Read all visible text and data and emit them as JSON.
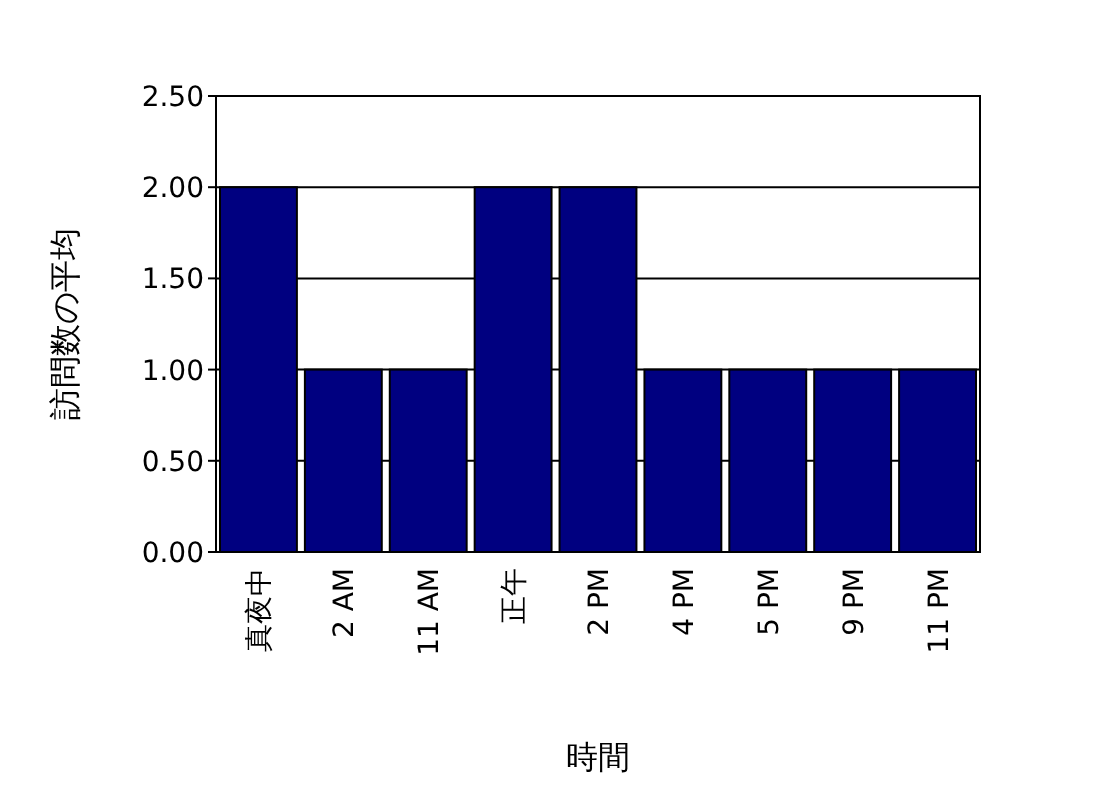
{
  "chart_data": {
    "type": "bar",
    "xlabel": "時間",
    "ylabel": "訪問数の平均",
    "categories": [
      "真夜中",
      "2 AM",
      "11 AM",
      "正午",
      "2 PM",
      "4 PM",
      "5 PM",
      "9 PM",
      "11 PM"
    ],
    "values": [
      2,
      1,
      1,
      2,
      2,
      1,
      1,
      1,
      1
    ],
    "color": "#000080",
    "grid": "y",
    "ylim": [
      0,
      2.5
    ],
    "yticks": [
      {
        "value": 0,
        "label": "0.00"
      },
      {
        "value": 0.5,
        "label": "0.50"
      },
      {
        "value": 1,
        "label": "1.00"
      },
      {
        "value": 1.5,
        "label": "1.50"
      },
      {
        "value": 2,
        "label": "2.00"
      },
      {
        "value": 2.5,
        "label": "2.50"
      }
    ]
  }
}
